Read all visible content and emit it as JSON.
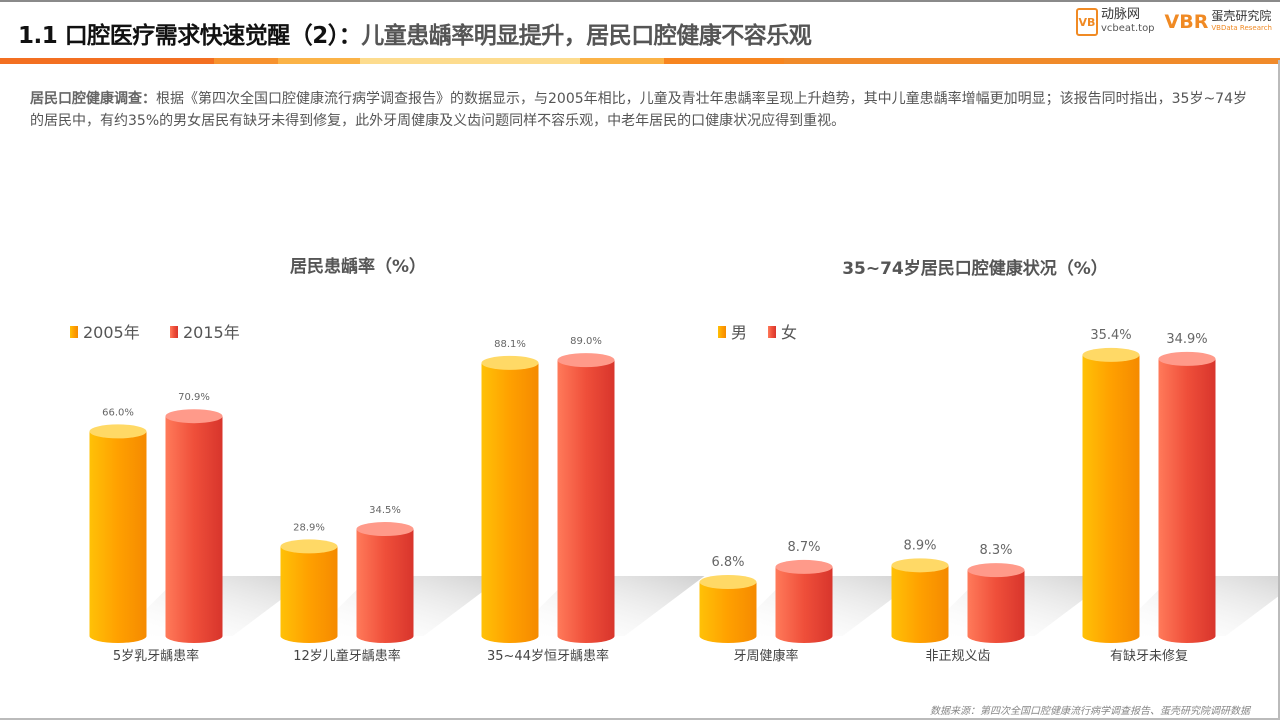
{
  "header": {
    "title_main": "1.1 口腔医疗需求快速觉醒（2）：",
    "title_sub": "儿童患龋率明显提升，居民口腔健康不容乐观"
  },
  "logos": {
    "vcbeat_mark": "VB",
    "vcbeat_name": "动脉网",
    "vcbeat_url": "vcbeat.top",
    "vbr_mark": "VBR",
    "vbr_name": "蛋壳研究院",
    "vbr_en": "VBData Research"
  },
  "intro": {
    "label": "居民口腔健康调查：",
    "text": "根据《第四次全国口腔健康流行病学调查报告》的数据显示，与2005年相比，儿童及青壮年患龋率呈现上升趋势，其中儿童患龋率增幅更加明显；该报告同时指出，35岁~74岁的居民中，有约35%的男女居民有缺牙未得到修复，此外牙周健康及义齿问题同样不容乐观，中老年居民的口健康状况应得到重视。"
  },
  "colors": {
    "accent": "#f36f21",
    "series_a": "#f9a800",
    "series_b": "#e8453c"
  },
  "chart_data": [
    {
      "type": "bar",
      "title": "居民患龋率（%）",
      "categories": [
        "5岁乳牙龋患率",
        "12岁儿童牙龋患率",
        "35~44岁恒牙龋患率"
      ],
      "series": [
        {
          "name": "2005年",
          "values": [
            66.0,
            28.9,
            88.1
          ],
          "labels": [
            "66.0%",
            "28.9%",
            "88.1%"
          ]
        },
        {
          "name": "2015年",
          "values": [
            70.9,
            34.5,
            89.0
          ],
          "labels": [
            "70.9%",
            "34.5%",
            "89.0%"
          ]
        }
      ],
      "ylim": [
        0,
        100
      ],
      "legend": "top-left",
      "grid": false
    },
    {
      "type": "bar",
      "title": "35~74岁居民口腔健康状况（%）",
      "categories": [
        "牙周健康率",
        "非正规义齿",
        "有缺牙未修复"
      ],
      "series": [
        {
          "name": "男",
          "values": [
            6.8,
            8.9,
            35.4
          ],
          "labels": [
            "6.8%",
            "8.9%",
            "35.4%"
          ]
        },
        {
          "name": "女",
          "values": [
            8.7,
            8.3,
            34.9
          ],
          "labels": [
            "8.7%",
            "8.3%",
            "34.9%"
          ]
        }
      ],
      "ylim": [
        0,
        40
      ],
      "legend": "top-left",
      "grid": false
    }
  ],
  "source": "数据来源：第四次全国口腔健康流行病学调查报告、蛋壳研究院调研数据"
}
